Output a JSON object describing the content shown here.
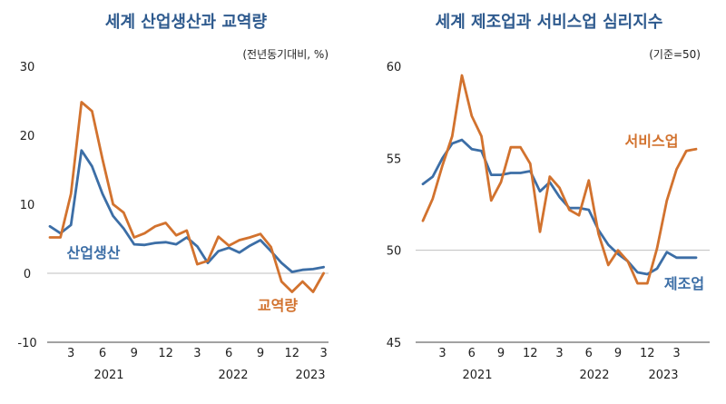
{
  "colors": {
    "blue": "#3c6ea6",
    "orange": "#d2722e",
    "title": "#2e5a8e",
    "ref": "#bfbfbf"
  },
  "chart_data": [
    {
      "type": "line",
      "title": "세계 산업생산과 교역량",
      "unit_note": "(전년동기대비, %)",
      "ylim": [
        -10,
        30
      ],
      "yticks": [
        "30",
        "20",
        "10",
        "0",
        "-10"
      ],
      "xtick_labels": [
        "3",
        "6",
        "9",
        "12",
        "3",
        "6",
        "9",
        "12",
        "3"
      ],
      "year_labels": [
        "2021",
        "2022",
        "2023"
      ],
      "reference_line": 0,
      "x": [
        "2021-01",
        "2021-02",
        "2021-03",
        "2021-04",
        "2021-05",
        "2021-06",
        "2021-07",
        "2021-08",
        "2021-09",
        "2021-10",
        "2021-11",
        "2021-12",
        "2022-01",
        "2022-02",
        "2022-03",
        "2022-04",
        "2022-05",
        "2022-06",
        "2022-07",
        "2022-08",
        "2022-09",
        "2022-10",
        "2022-11",
        "2022-12",
        "2023-01",
        "2023-02",
        "2023-03"
      ],
      "series": [
        {
          "name": "산업생산",
          "color_key": "blue",
          "values": [
            6.8,
            5.8,
            7.0,
            17.8,
            15.5,
            11.5,
            8.3,
            6.5,
            4.2,
            4.1,
            4.4,
            4.5,
            4.2,
            5.2,
            3.9,
            1.5,
            3.2,
            3.7,
            3.0,
            4.0,
            4.8,
            3.2,
            1.5,
            0.2,
            0.5,
            0.6,
            0.9
          ]
        },
        {
          "name": "교역량",
          "color_key": "orange",
          "values": [
            5.2,
            5.2,
            11.5,
            24.8,
            23.5,
            16.5,
            10.0,
            8.8,
            5.2,
            5.8,
            6.8,
            7.3,
            5.5,
            6.2,
            1.3,
            1.8,
            5.3,
            4.0,
            4.8,
            5.2,
            5.7,
            3.8,
            -1.2,
            -2.7,
            -1.2,
            -2.7,
            0.0
          ]
        }
      ]
    },
    {
      "type": "line",
      "title": "세계 제조업과 서비스업 심리지수",
      "unit_note": "(기준=50)",
      "ylim": [
        45,
        60
      ],
      "yticks": [
        "60",
        "55",
        "50",
        "45"
      ],
      "xtick_labels": [
        "3",
        "6",
        "9",
        "12",
        "3",
        "6",
        "9",
        "12",
        "3"
      ],
      "year_labels": [
        "2021",
        "2022",
        "2023"
      ],
      "reference_line": 50,
      "x": [
        "2021-01",
        "2021-02",
        "2021-03",
        "2021-04",
        "2021-05",
        "2021-06",
        "2021-07",
        "2021-08",
        "2021-09",
        "2021-10",
        "2021-11",
        "2021-12",
        "2022-01",
        "2022-02",
        "2022-03",
        "2022-04",
        "2022-05",
        "2022-06",
        "2022-07",
        "2022-08",
        "2022-09",
        "2022-10",
        "2022-11",
        "2022-12",
        "2023-01",
        "2023-02",
        "2023-03",
        "2023-04",
        "2023-05"
      ],
      "series": [
        {
          "name": "제조업",
          "color_key": "blue",
          "values": [
            53.6,
            54.0,
            55.0,
            55.8,
            56.0,
            55.5,
            55.4,
            54.1,
            54.1,
            54.2,
            54.2,
            54.3,
            53.2,
            53.7,
            52.9,
            52.3,
            52.3,
            52.2,
            51.1,
            50.3,
            49.8,
            49.4,
            48.8,
            48.7,
            49.0,
            49.9,
            49.6,
            49.6,
            49.6
          ]
        },
        {
          "name": "서비스업",
          "color_key": "orange",
          "values": [
            51.6,
            52.8,
            54.6,
            56.2,
            59.5,
            57.3,
            56.2,
            52.7,
            53.7,
            55.6,
            55.6,
            54.7,
            51.0,
            54.0,
            53.4,
            52.2,
            51.9,
            53.8,
            50.9,
            49.2,
            50.0,
            49.4,
            48.2,
            48.2,
            50.1,
            52.7,
            54.4,
            55.4,
            55.5
          ]
        }
      ]
    }
  ]
}
